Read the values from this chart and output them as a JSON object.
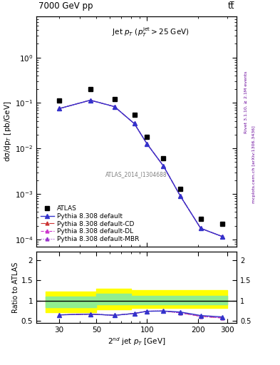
{
  "title_top": "7000 GeV pp",
  "title_top_right": "tt̅",
  "annotation": "Jet $p_T$ ($p_T^{\\rm jet}>$25 GeV)",
  "atlas_label": "ATLAS_2014_I1304688",
  "right_label_top": "Rivet 3.1.10, ≥ 2.1M events",
  "right_label_bot": "mcplots.cern.ch [arXiv:1306.3436]",
  "xlabel": "$2^{nd}$ jet $p_T$ [GeV]",
  "ylabel_main": "dσ/dp$_T$ [pb/GeV]",
  "ylabel_ratio": "Ratio to ATLAS",
  "pt_values": [
    30,
    46,
    64,
    84,
    100,
    125,
    158,
    208,
    280
  ],
  "atlas_values": [
    0.115,
    0.2,
    0.12,
    0.055,
    0.018,
    0.006,
    0.0013,
    0.00028,
    0.00022
  ],
  "pythia_default_values": [
    0.075,
    0.115,
    0.083,
    0.035,
    0.0125,
    0.0041,
    0.00088,
    0.000175,
    0.000115
  ],
  "pythia_cd_values": [
    0.075,
    0.115,
    0.083,
    0.035,
    0.0125,
    0.0041,
    0.00088,
    0.000175,
    0.000115
  ],
  "pythia_dl_values": [
    0.075,
    0.115,
    0.083,
    0.035,
    0.0125,
    0.0041,
    0.00088,
    0.000175,
    0.000115
  ],
  "pythia_mbr_values": [
    0.075,
    0.115,
    0.083,
    0.035,
    0.0125,
    0.0041,
    0.00088,
    0.000175,
    0.000115
  ],
  "ratio_pt": [
    30,
    46,
    64,
    84,
    100,
    125,
    158,
    208,
    280
  ],
  "ratio_default": [
    0.65,
    0.67,
    0.64,
    0.685,
    0.74,
    0.745,
    0.72,
    0.635,
    0.6
  ],
  "ratio_cd": [
    0.65,
    0.67,
    0.64,
    0.685,
    0.74,
    0.745,
    0.7,
    0.615,
    0.575
  ],
  "ratio_dl": [
    0.65,
    0.67,
    0.64,
    0.685,
    0.74,
    0.745,
    0.7,
    0.615,
    0.575
  ],
  "ratio_mbr": [
    0.65,
    0.67,
    0.64,
    0.685,
    0.74,
    0.745,
    0.7,
    0.615,
    0.575
  ],
  "band_x": [
    25,
    50,
    50,
    80,
    80,
    300
  ],
  "yellow_lo": [
    0.72,
    0.72,
    0.78,
    0.78,
    0.82,
    0.82
  ],
  "yellow_hi": [
    1.22,
    1.22,
    1.3,
    1.3,
    1.25,
    1.25
  ],
  "green_lo": [
    0.83,
    0.83,
    0.9,
    0.9,
    0.9,
    0.9
  ],
  "green_hi": [
    1.1,
    1.1,
    1.17,
    1.17,
    1.12,
    1.12
  ],
  "color_default": "#3333cc",
  "color_cd": "#cc3333",
  "color_dl": "#cc33cc",
  "color_mbr": "#9933cc",
  "ylim_main": [
    7e-05,
    8.0
  ],
  "ylim_ratio": [
    0.45,
    2.2
  ],
  "xlim": [
    22,
    340
  ]
}
